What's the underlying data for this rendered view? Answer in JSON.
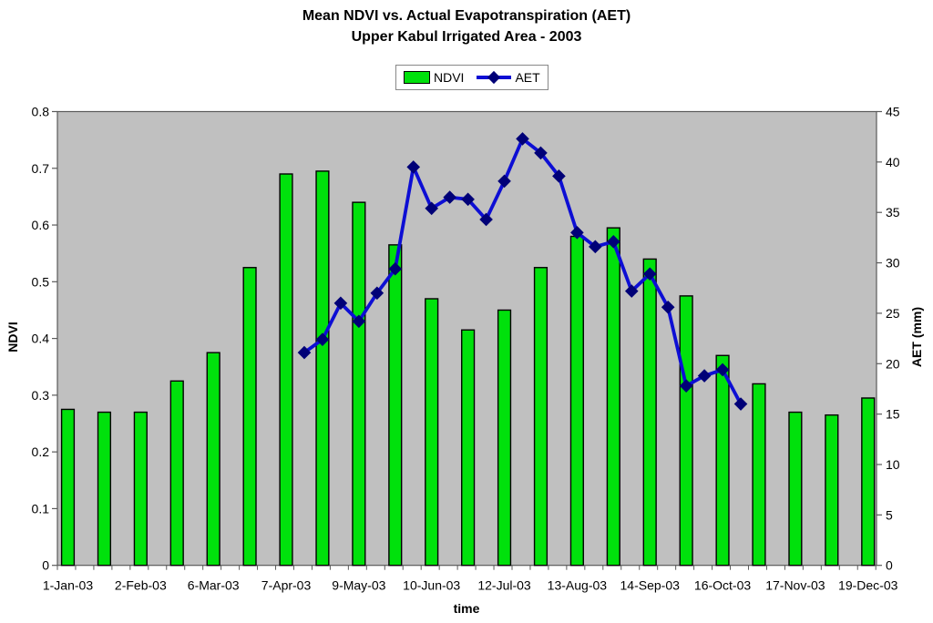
{
  "title": {
    "line1": "Mean NDVI vs. Actual Evapotranspiration (AET)",
    "line2": "Upper Kabul Irrigated Area - 2003"
  },
  "legend": {
    "ndvi_label": "NDVI",
    "aet_label": "AET"
  },
  "chart_data": {
    "type": "combo-bar-line",
    "plot_bg": "#c0c0c0",
    "plot_border": "#5a5a5a",
    "n_categories": 23,
    "x_axis": {
      "title": "time",
      "tick_labels": [
        "1-Jan-03",
        "2-Feb-03",
        "6-Mar-03",
        "7-Apr-03",
        "9-May-03",
        "10-Jun-03",
        "12-Jul-03",
        "13-Aug-03",
        "14-Sep-03",
        "16-Oct-03",
        "17-Nov-03",
        "19-Dec-03"
      ],
      "tick_label_category_positions": [
        1,
        3,
        5,
        7,
        9,
        11,
        13,
        15,
        17,
        19,
        21,
        23
      ]
    },
    "left_axis": {
      "title": "NDVI",
      "min": 0,
      "max": 0.8,
      "step": 0.1,
      "tick_labels": [
        "0",
        "0.1",
        "0.2",
        "0.3",
        "0.4",
        "0.5",
        "0.6",
        "0.7",
        "0.8"
      ]
    },
    "right_axis": {
      "title": "AET (mm)",
      "min": 0,
      "max": 45,
      "step": 5,
      "tick_labels": [
        "0",
        "5",
        "10",
        "15",
        "20",
        "25",
        "30",
        "35",
        "40",
        "45"
      ]
    },
    "series": [
      {
        "name": "NDVI",
        "type": "bar",
        "axis": "left",
        "fill": "#00e10c",
        "stroke": "#000000",
        "category_positions": [
          1,
          2,
          3,
          4,
          5,
          6,
          7,
          8,
          9,
          10,
          11,
          12,
          13,
          14,
          15,
          16,
          17,
          18,
          19,
          20,
          21,
          22,
          23
        ],
        "values": [
          0.275,
          0.27,
          0.27,
          0.325,
          0.375,
          0.525,
          0.69,
          0.695,
          0.64,
          0.565,
          0.47,
          0.415,
          0.45,
          0.525,
          0.58,
          0.595,
          0.54,
          0.475,
          0.37,
          0.32,
          0.27,
          0.265,
          0.295
        ]
      },
      {
        "name": "AET",
        "type": "line",
        "axis": "right",
        "line_color": "#0d0ed4",
        "marker": "diamond",
        "marker_color": "#000077",
        "category_positions": [
          7.5,
          8,
          8.5,
          9,
          9.5,
          10,
          10.5,
          11,
          11.5,
          12,
          12.5,
          13,
          13.5,
          14,
          14.5,
          15,
          15.5,
          16,
          16.5,
          17,
          17.5,
          18,
          18.5,
          19,
          19.5
        ],
        "values": [
          21.1,
          22.4,
          26,
          24.2,
          27,
          29.4,
          39.5,
          35.4,
          36.5,
          36.3,
          34.3,
          38.1,
          42.3,
          40.9,
          38.6,
          33,
          31.6,
          32.1,
          27.2,
          28.9,
          25.6,
          17.8,
          18.8,
          19.4,
          16
        ]
      }
    ]
  }
}
